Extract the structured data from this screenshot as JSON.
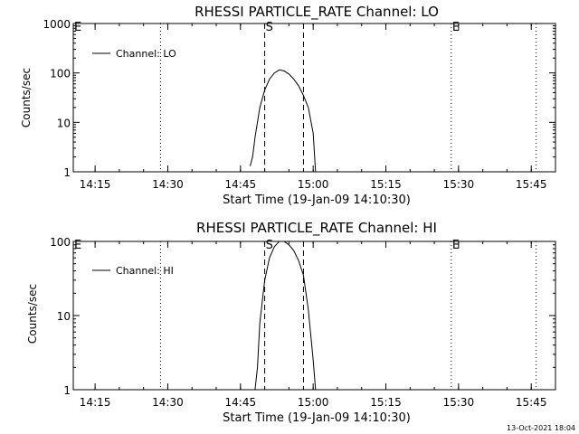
{
  "chart_data": [
    {
      "type": "line",
      "title": "RHESSI PARTICLE_RATE Channel: LO",
      "xlabel": "Start Time (19-Jan-09 14:10:30)",
      "ylabel": "Counts/sec",
      "yscale": "log",
      "xlim": [
        "14:10:30",
        "15:50:00"
      ],
      "ylim": [
        1,
        1000
      ],
      "x_ticks": [
        "14:15",
        "14:30",
        "14:45",
        "15:00",
        "15:15",
        "15:30",
        "15:45"
      ],
      "y_ticks": [
        "1",
        "10",
        "100",
        "1000"
      ],
      "legend": {
        "placement": "top-left",
        "entries": [
          "Channel: LO"
        ]
      },
      "vertical_markers": [
        {
          "label": "S",
          "time": "14:50:00",
          "style": "dashed"
        },
        {
          "label": "",
          "time": "14:58:00",
          "style": "dashed"
        },
        {
          "label": "",
          "time": "14:28:30",
          "style": "dotted"
        },
        {
          "label": "E",
          "time": "15:28:30",
          "style": "dotted"
        },
        {
          "label": "",
          "time": "15:46:00",
          "style": "dotted"
        }
      ],
      "series": [
        {
          "name": "Channel: LO",
          "x": [
            "14:47:00",
            "14:47:30",
            "14:48:00",
            "14:49:00",
            "14:50:00",
            "14:51:00",
            "14:52:00",
            "14:53:00",
            "14:54:00",
            "14:55:00",
            "14:56:00",
            "14:57:00",
            "14:58:00",
            "14:59:00",
            "15:00:00",
            "15:00:30"
          ],
          "y": [
            1.3,
            2,
            5,
            20,
            45,
            75,
            100,
            115,
            110,
            95,
            75,
            55,
            35,
            20,
            6,
            1
          ]
        }
      ]
    },
    {
      "type": "line",
      "title": "RHESSI PARTICLE_RATE Channel: HI",
      "xlabel": "Start Time (19-Jan-09 14:10:30)",
      "ylabel": "Counts/sec",
      "yscale": "log",
      "xlim": [
        "14:10:30",
        "15:50:00"
      ],
      "ylim": [
        1,
        100
      ],
      "x_ticks": [
        "14:15",
        "14:30",
        "14:45",
        "15:00",
        "15:15",
        "15:30",
        "15:45"
      ],
      "y_ticks": [
        "1",
        "10",
        "100"
      ],
      "legend": {
        "placement": "top-left",
        "entries": [
          "Channel: HI"
        ]
      },
      "vertical_markers": [
        {
          "label": "S",
          "time": "14:50:00",
          "style": "dashed"
        },
        {
          "label": "",
          "time": "14:58:00",
          "style": "dashed"
        },
        {
          "label": "",
          "time": "14:28:30",
          "style": "dotted"
        },
        {
          "label": "E",
          "time": "15:28:30",
          "style": "dotted"
        },
        {
          "label": "",
          "time": "15:46:00",
          "style": "dotted"
        }
      ],
      "series": [
        {
          "name": "Channel: HI",
          "x": [
            "14:48:00",
            "14:48:30",
            "14:49:00",
            "14:50:00",
            "14:51:00",
            "14:52:00",
            "14:53:00",
            "14:54:00",
            "14:55:00",
            "14:56:00",
            "14:57:00",
            "14:58:00",
            "14:59:00",
            "15:00:00",
            "15:00:30"
          ],
          "y": [
            1,
            2,
            8,
            30,
            60,
            85,
            100,
            100,
            90,
            75,
            55,
            35,
            12,
            2.5,
            1
          ]
        }
      ]
    }
  ],
  "left_edge_marks": [
    "E",
    "E"
  ],
  "footer": {
    "timestamp": "13-Oct-2021 18:04"
  }
}
